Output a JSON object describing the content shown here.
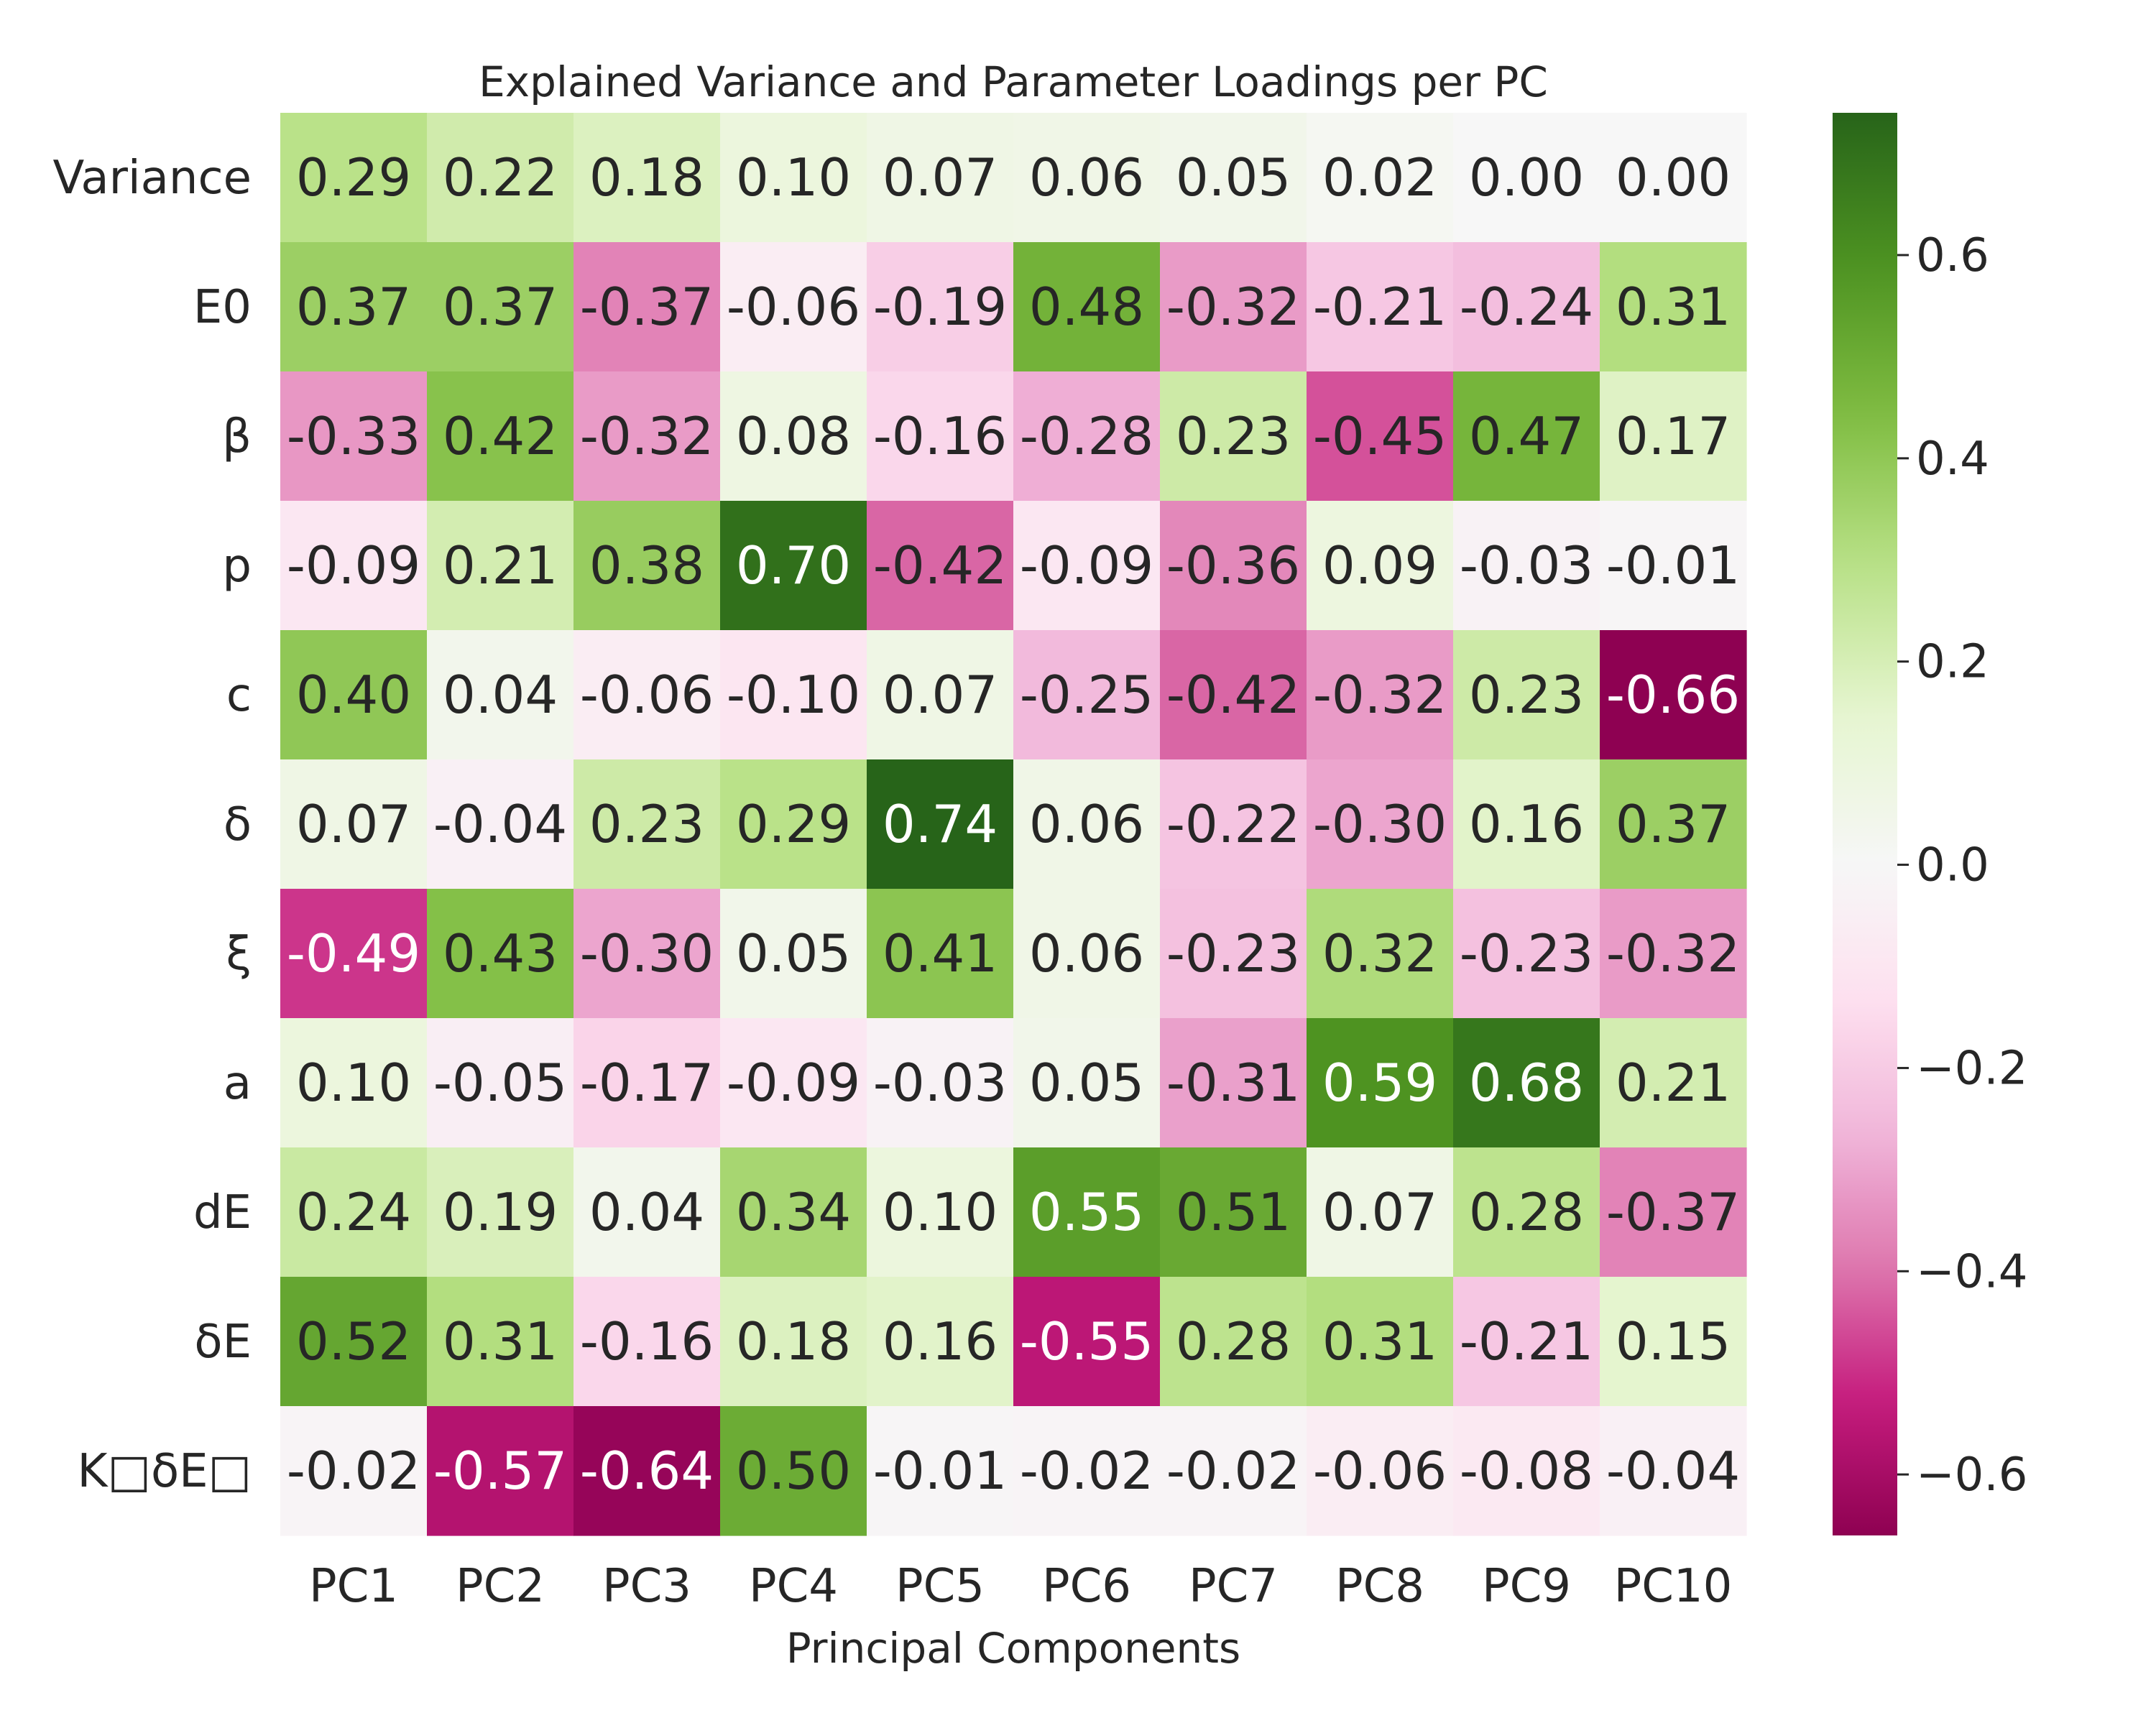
{
  "chart_data": {
    "type": "heatmap",
    "title": "Explained Variance and Parameter Loadings per PC",
    "xlabel": "Principal Components",
    "ylabel": "",
    "columns": [
      "PC1",
      "PC2",
      "PC3",
      "PC4",
      "PC5",
      "PC6",
      "PC7",
      "PC8",
      "PC9",
      "PC10"
    ],
    "rows": [
      "Variance",
      "E0",
      "β",
      "p",
      "c",
      "δ",
      "ξ",
      "a",
      "dE",
      "δE",
      "K□δE□"
    ],
    "values": [
      [
        0.29,
        0.22,
        0.18,
        0.1,
        0.07,
        0.06,
        0.05,
        0.02,
        0.0,
        0.0
      ],
      [
        0.37,
        0.37,
        -0.37,
        -0.06,
        -0.19,
        0.48,
        -0.32,
        -0.21,
        -0.24,
        0.31
      ],
      [
        -0.33,
        0.42,
        -0.32,
        0.08,
        -0.16,
        -0.28,
        0.23,
        -0.45,
        0.47,
        0.17
      ],
      [
        -0.09,
        0.21,
        0.38,
        0.7,
        -0.42,
        -0.09,
        -0.36,
        0.09,
        -0.03,
        -0.01
      ],
      [
        0.4,
        0.04,
        -0.06,
        -0.1,
        0.07,
        -0.25,
        -0.42,
        -0.32,
        0.23,
        -0.66
      ],
      [
        0.07,
        -0.04,
        0.23,
        0.29,
        0.74,
        0.06,
        -0.22,
        -0.3,
        0.16,
        0.37
      ],
      [
        -0.49,
        0.43,
        -0.3,
        0.05,
        0.41,
        0.06,
        -0.23,
        0.32,
        -0.23,
        -0.32
      ],
      [
        0.1,
        -0.05,
        -0.17,
        -0.09,
        -0.03,
        0.05,
        -0.31,
        0.59,
        0.68,
        0.21
      ],
      [
        0.24,
        0.19,
        0.04,
        0.34,
        0.1,
        0.55,
        0.51,
        0.07,
        0.28,
        -0.37
      ],
      [
        0.52,
        0.31,
        -0.16,
        0.18,
        0.16,
        -0.55,
        0.28,
        0.31,
        -0.21,
        0.15
      ],
      [
        -0.02,
        -0.57,
        -0.64,
        0.5,
        -0.01,
        -0.02,
        -0.02,
        -0.06,
        -0.08,
        -0.04
      ]
    ],
    "value_format": "0.00",
    "colormap": "PiYG",
    "color_range": [
      -0.66,
      0.74
    ],
    "colorbar": {
      "ticks": [
        -0.6,
        -0.4,
        -0.2,
        0.0,
        0.2,
        0.4,
        0.6
      ],
      "tick_labels": [
        "−0.6",
        "−0.4",
        "−0.2",
        "0.0",
        "0.2",
        "0.4",
        "0.6"
      ],
      "placement": "right"
    },
    "grid": false,
    "colors": {
      "negative_strong": "#8e0152",
      "negative_mid": "#de77ae",
      "neutral": "#f7f7f7",
      "positive_mid": "#7fbc41",
      "positive_strong": "#276419"
    }
  }
}
